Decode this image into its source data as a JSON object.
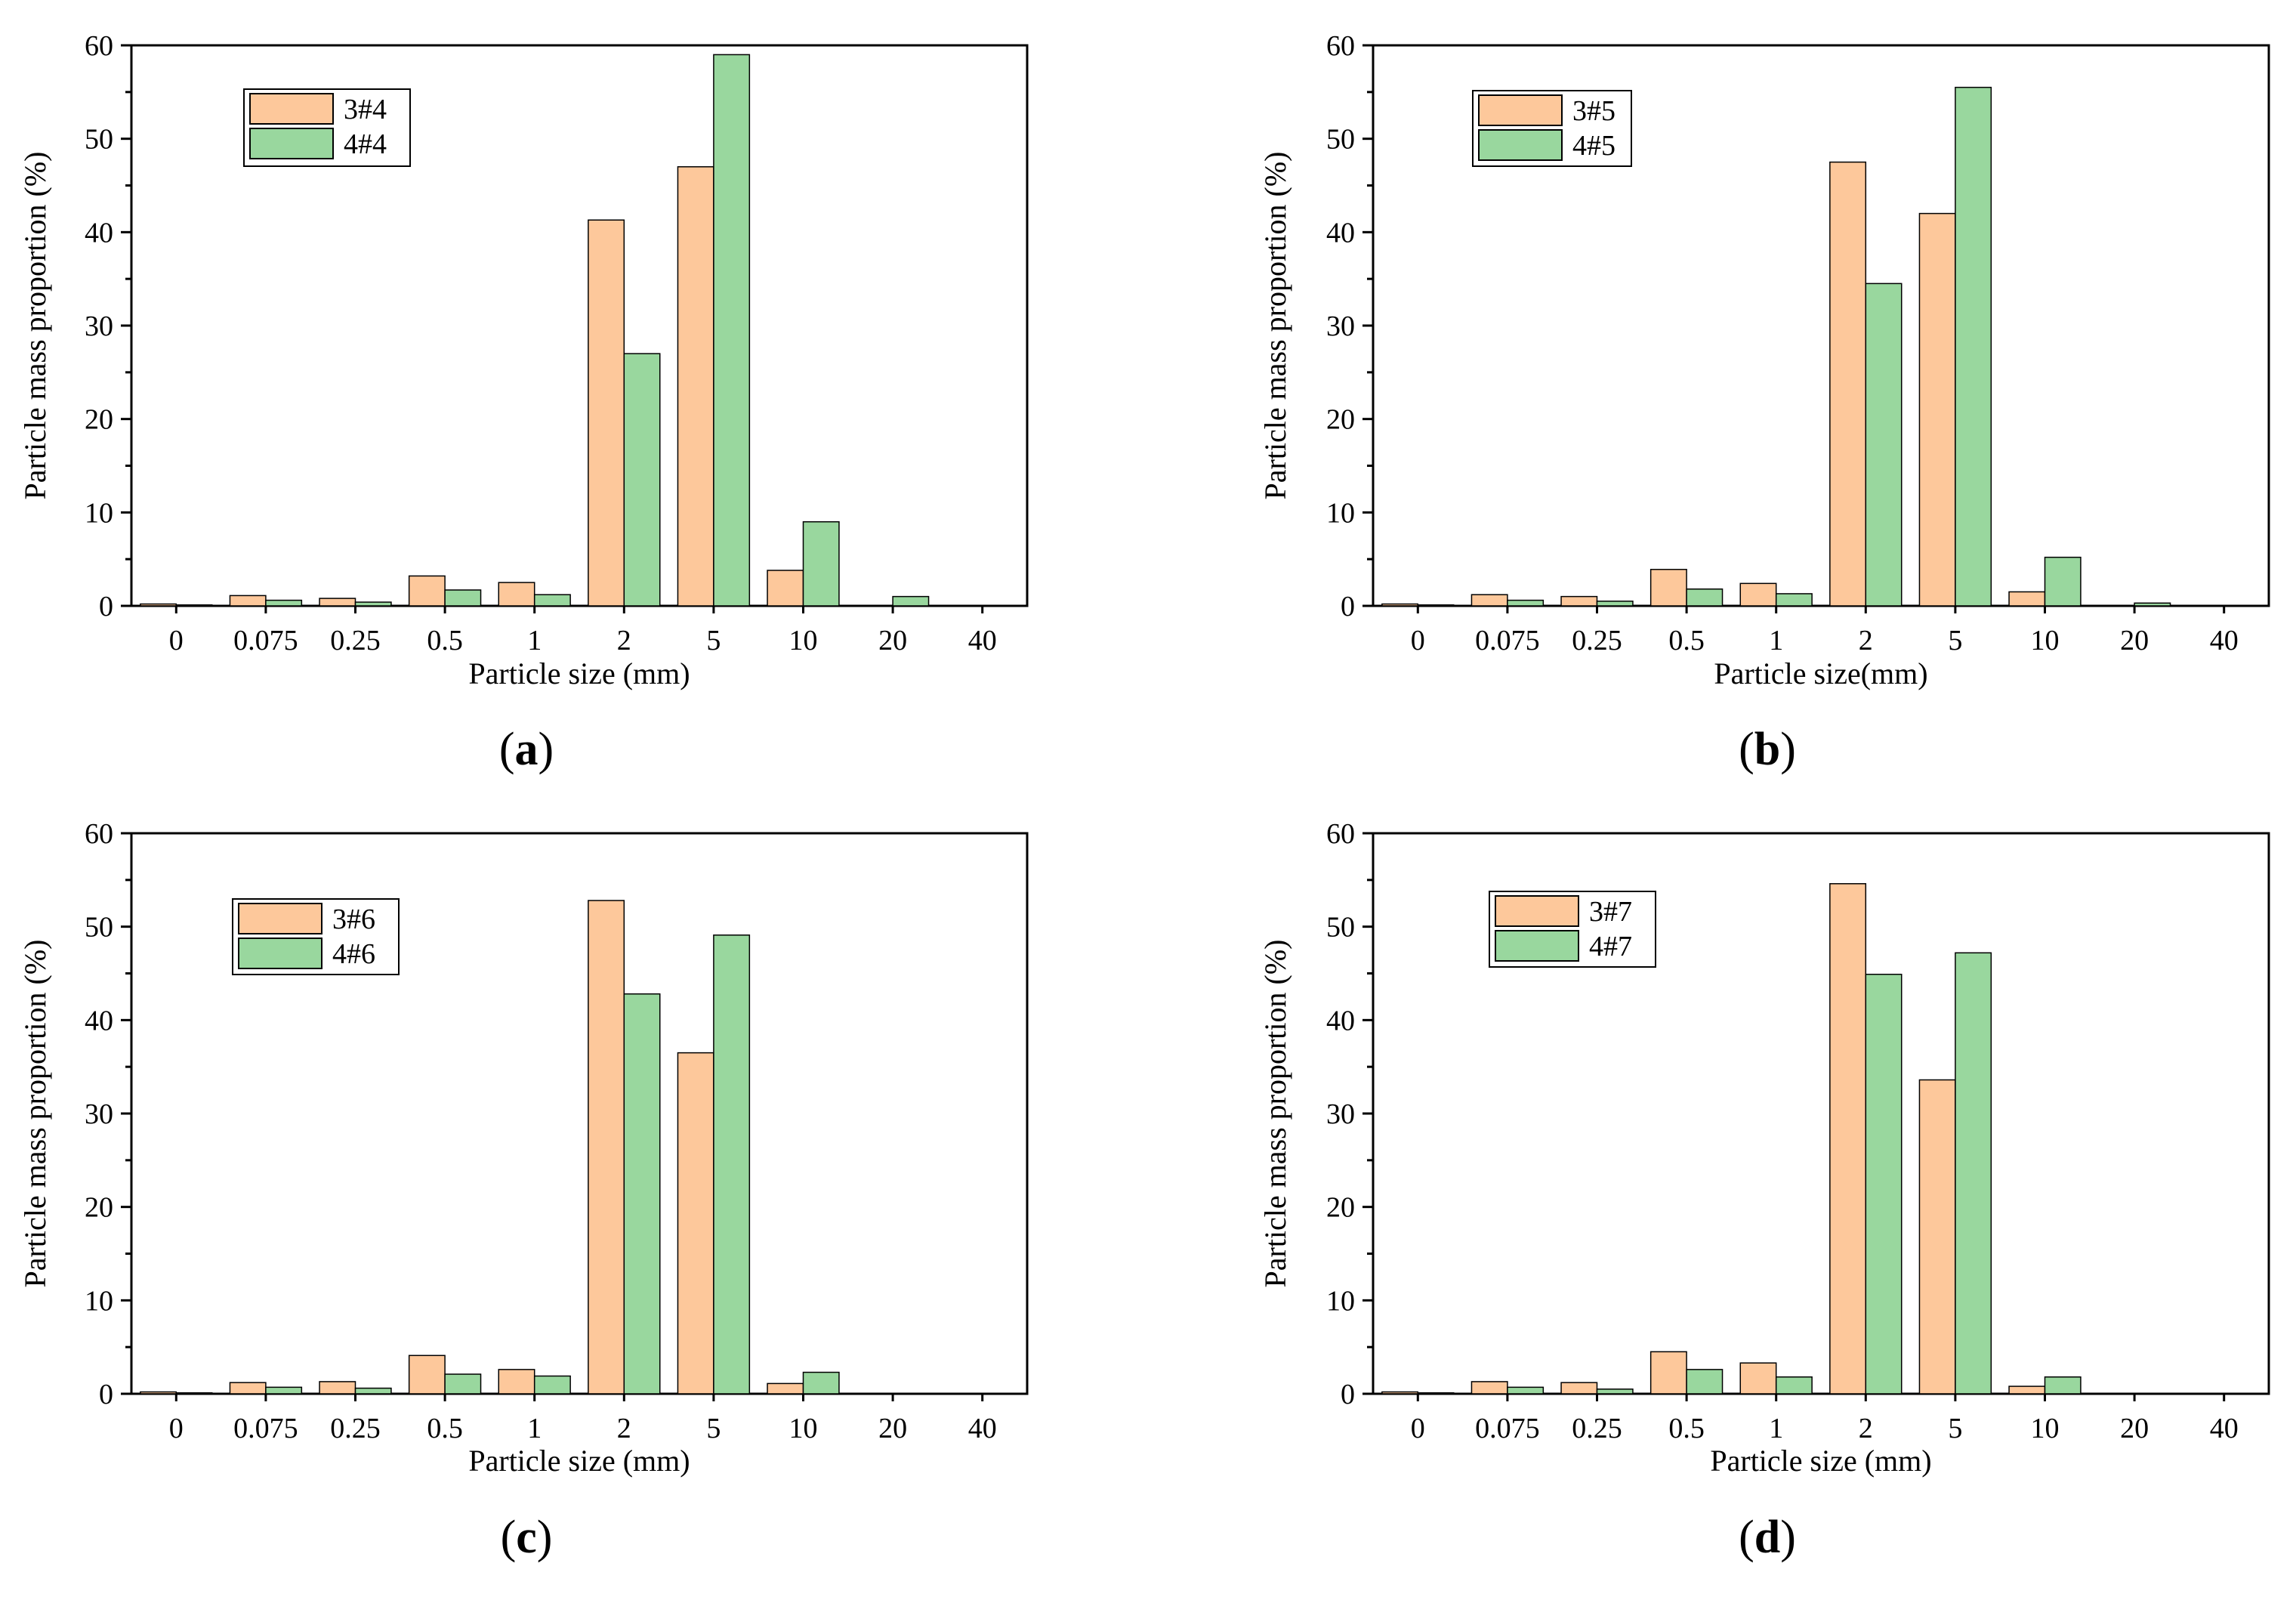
{
  "chart_data": [
    {
      "type": "bar",
      "panel_label": "(a)",
      "panel_letter": "a",
      "categories": [
        "0",
        "0.075",
        "0.25",
        "0.5",
        "1",
        "2",
        "5",
        "10",
        "20",
        "40"
      ],
      "series": [
        {
          "name": "3#4",
          "values": [
            0.2,
            1.1,
            0.8,
            3.2,
            2.5,
            41.3,
            47.0,
            3.8,
            0,
            0
          ]
        },
        {
          "name": "4#4",
          "values": [
            0.1,
            0.6,
            0.4,
            1.7,
            1.2,
            27.0,
            59.0,
            9.0,
            1.0,
            0
          ]
        }
      ],
      "xlabel": "Particle size (mm)",
      "ylabel": "Particle mass proportion (%)",
      "ylim": [
        0,
        60
      ],
      "yticks": [
        0,
        10,
        20,
        30,
        40,
        50,
        60
      ],
      "legend": "top-left"
    },
    {
      "type": "bar",
      "panel_label": "(b)",
      "panel_letter": "b",
      "categories": [
        "0",
        "0.075",
        "0.25",
        "0.5",
        "1",
        "2",
        "5",
        "10",
        "20",
        "40"
      ],
      "series": [
        {
          "name": "3#5",
          "values": [
            0.2,
            1.2,
            1.0,
            3.9,
            2.4,
            47.5,
            42.0,
            1.5,
            0,
            0
          ]
        },
        {
          "name": "4#5",
          "values": [
            0.1,
            0.6,
            0.5,
            1.8,
            1.3,
            34.5,
            55.5,
            5.2,
            0.3,
            0
          ]
        }
      ],
      "xlabel": "Particle size(mm)",
      "ylabel": "Particle mass proportion (%)",
      "ylim": [
        0,
        60
      ],
      "yticks": [
        0,
        10,
        20,
        30,
        40,
        50,
        60
      ],
      "legend": "top-left"
    },
    {
      "type": "bar",
      "panel_label": "(c)",
      "panel_letter": "c",
      "categories": [
        "0",
        "0.075",
        "0.25",
        "0.5",
        "1",
        "2",
        "5",
        "10",
        "20",
        "40"
      ],
      "series": [
        {
          "name": "3#6",
          "values": [
            0.2,
            1.2,
            1.3,
            4.1,
            2.6,
            52.8,
            36.5,
            1.1,
            0,
            0
          ]
        },
        {
          "name": "4#6",
          "values": [
            0.1,
            0.7,
            0.6,
            2.1,
            1.9,
            42.8,
            49.1,
            2.3,
            0,
            0
          ]
        }
      ],
      "xlabel": "Particle size (mm)",
      "ylabel": "Particle mass proportion (%)",
      "ylim": [
        0,
        60
      ],
      "yticks": [
        0,
        10,
        20,
        30,
        40,
        50,
        60
      ],
      "legend": "top-left"
    },
    {
      "type": "bar",
      "panel_label": "(d)",
      "panel_letter": "d",
      "categories": [
        "0",
        "0.075",
        "0.25",
        "0.5",
        "1",
        "2",
        "5",
        "10",
        "20",
        "40"
      ],
      "series": [
        {
          "name": "3#7",
          "values": [
            0.2,
            1.3,
            1.2,
            4.5,
            3.3,
            54.6,
            33.6,
            0.8,
            0,
            0
          ]
        },
        {
          "name": "4#7",
          "values": [
            0.1,
            0.7,
            0.5,
            2.6,
            1.8,
            44.9,
            47.2,
            1.8,
            0,
            0
          ]
        }
      ],
      "xlabel": "Particle size (mm)",
      "ylabel": "Particle mass proportion (%)",
      "ylim": [
        0,
        60
      ],
      "yticks": [
        0,
        10,
        20,
        30,
        40,
        50,
        60
      ],
      "legend": "top-left"
    }
  ],
  "colors": {
    "series_3": "#fdc89b",
    "series_4": "#99d79e",
    "bar_edge": "#000000",
    "axis": "#000000",
    "background": "#ffffff"
  }
}
